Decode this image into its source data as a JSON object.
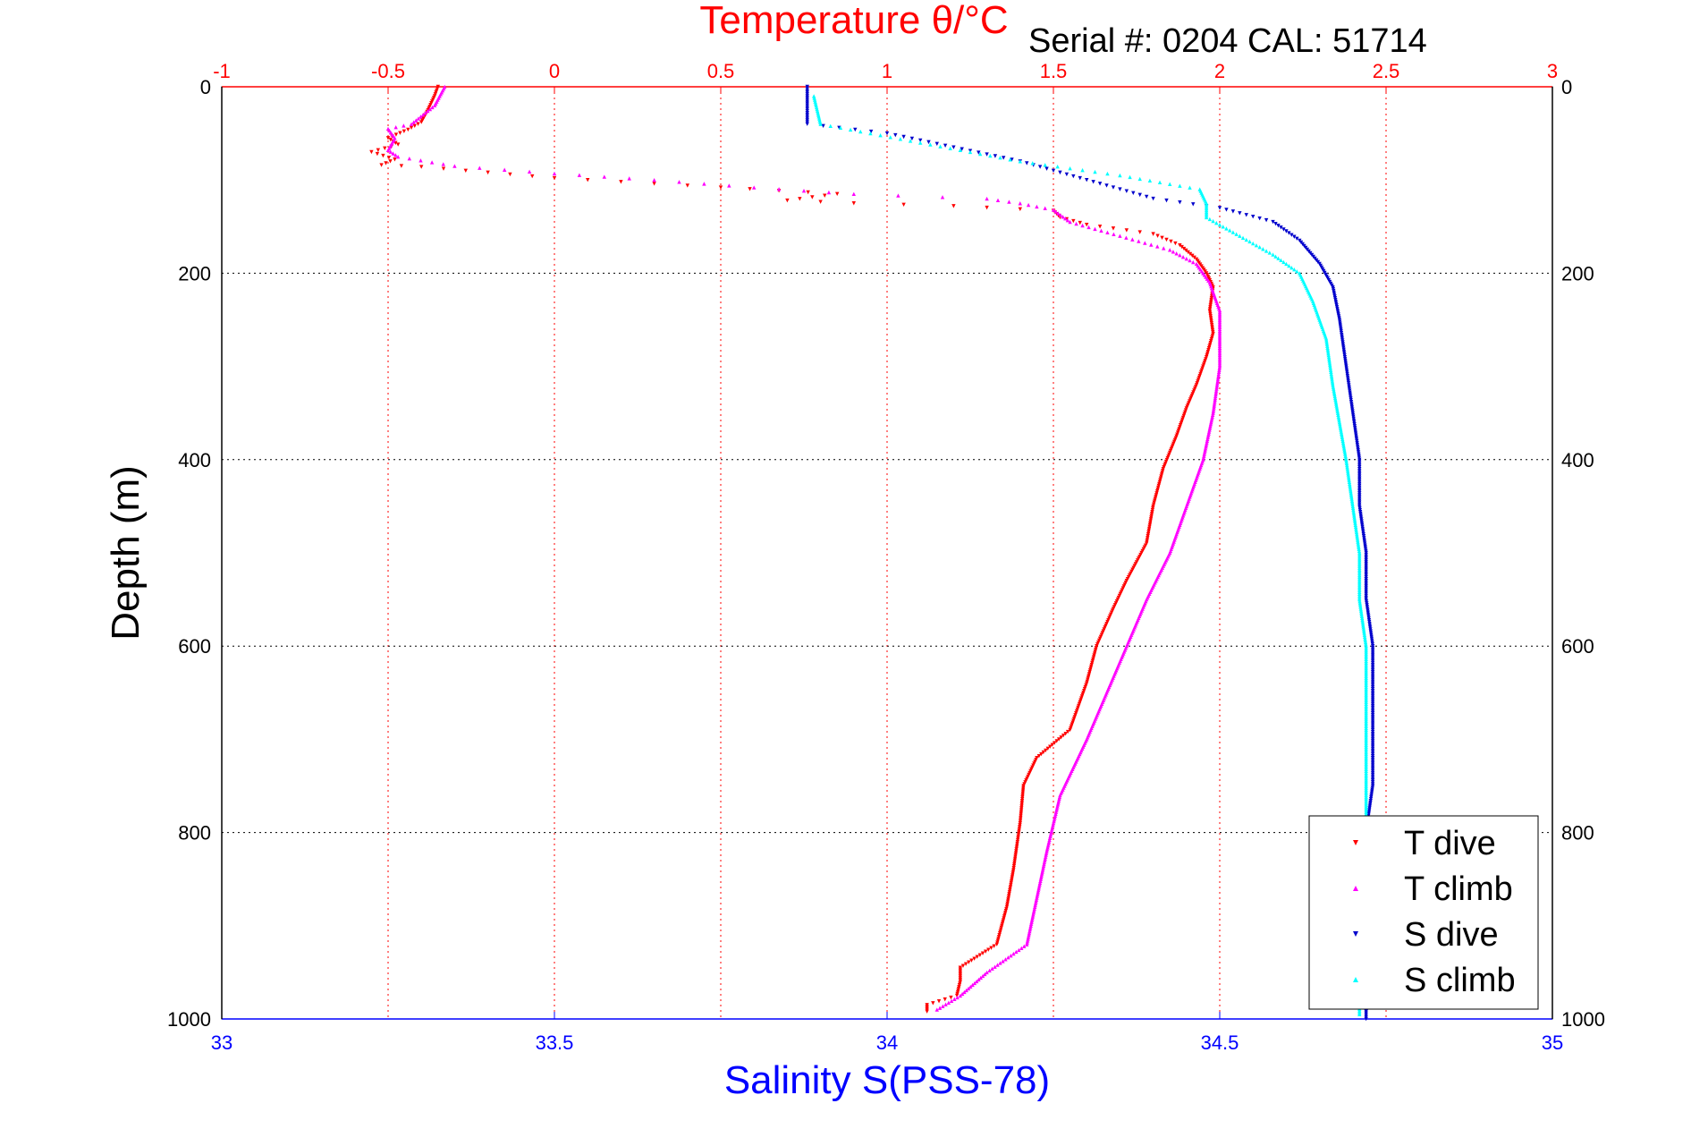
{
  "chart_data": {
    "type": "scatter",
    "title": "Temperature θ/°C",
    "annotation": "Serial #: 0204  CAL: 51714",
    "xlabel_bottom": "Salinity S(PSS-78)",
    "xlabel_top": "Temperature θ/°C",
    "ylabel": "Depth (m)",
    "ylim": [
      0,
      1000
    ],
    "y_reversed": true,
    "xlim_bottom": [
      33,
      35
    ],
    "xlim_top": [
      -1,
      3
    ],
    "bottom_ticks": [
      "33",
      "33.5",
      "34",
      "34.5",
      "35"
    ],
    "top_ticks": [
      "-1",
      "-0.5",
      "0",
      "0.5",
      "1",
      "1.5",
      "2",
      "2.5",
      "3"
    ],
    "y_ticks": [
      "0",
      "200",
      "400",
      "600",
      "800",
      "1000"
    ],
    "grid": true,
    "legend_position": "bottom-right",
    "colors": {
      "temperature_axis": "#ff0000",
      "salinity_axis": "#0000ff"
    },
    "series": [
      {
        "name": "T dive",
        "axis": "top",
        "marker": "triangle-down",
        "color": "#ff0000",
        "points": [
          [
            -0.35,
            0
          ],
          [
            -0.36,
            10
          ],
          [
            -0.38,
            25
          ],
          [
            -0.4,
            38
          ],
          [
            -0.44,
            46
          ],
          [
            -0.5,
            55
          ],
          [
            -0.47,
            62
          ],
          [
            -0.55,
            70
          ],
          [
            -0.48,
            78
          ],
          [
            -0.52,
            84
          ],
          [
            -0.4,
            86
          ],
          [
            0,
            98
          ],
          [
            0.5,
            108
          ],
          [
            0.85,
            115
          ],
          [
            0.7,
            122
          ],
          [
            0.9,
            125
          ],
          [
            1.2,
            128
          ],
          [
            1.5,
            133
          ],
          [
            1.52,
            140
          ],
          [
            1.6,
            148
          ],
          [
            1.8,
            158
          ],
          [
            1.88,
            170
          ],
          [
            1.93,
            185
          ],
          [
            1.96,
            200
          ],
          [
            1.98,
            215
          ],
          [
            1.97,
            240
          ],
          [
            1.98,
            265
          ],
          [
            1.96,
            290
          ],
          [
            1.93,
            320
          ],
          [
            1.9,
            345
          ],
          [
            1.87,
            375
          ],
          [
            1.83,
            410
          ],
          [
            1.8,
            450
          ],
          [
            1.78,
            490
          ],
          [
            1.72,
            530
          ],
          [
            1.68,
            560
          ],
          [
            1.63,
            600
          ],
          [
            1.6,
            640
          ],
          [
            1.55,
            690
          ],
          [
            1.45,
            720
          ],
          [
            1.41,
            750
          ],
          [
            1.4,
            790
          ],
          [
            1.38,
            840
          ],
          [
            1.36,
            880
          ],
          [
            1.33,
            920
          ],
          [
            1.22,
            945
          ],
          [
            1.22,
            960
          ],
          [
            1.21,
            975
          ],
          [
            1.12,
            985
          ],
          [
            1.12,
            992
          ]
        ]
      },
      {
        "name": "T climb",
        "axis": "top",
        "marker": "triangle-up",
        "color": "#ff00ff",
        "points": [
          [
            -0.33,
            0
          ],
          [
            -0.36,
            20
          ],
          [
            -0.43,
            40
          ],
          [
            -0.5,
            45
          ],
          [
            -0.48,
            55
          ],
          [
            -0.5,
            68
          ],
          [
            -0.47,
            75
          ],
          [
            -0.3,
            85
          ],
          [
            0,
            93
          ],
          [
            0.3,
            100
          ],
          [
            0.6,
            108
          ],
          [
            0.9,
            115
          ],
          [
            1.3,
            120
          ],
          [
            1.4,
            125
          ],
          [
            1.5,
            132
          ],
          [
            1.55,
            145
          ],
          [
            1.7,
            160
          ],
          [
            1.85,
            175
          ],
          [
            1.93,
            190
          ],
          [
            1.97,
            210
          ],
          [
            2.0,
            240
          ],
          [
            2.0,
            270
          ],
          [
            2.0,
            300
          ],
          [
            1.98,
            350
          ],
          [
            1.95,
            400
          ],
          [
            1.9,
            450
          ],
          [
            1.85,
            500
          ],
          [
            1.78,
            550
          ],
          [
            1.72,
            600
          ],
          [
            1.66,
            650
          ],
          [
            1.6,
            700
          ],
          [
            1.52,
            760
          ],
          [
            1.48,
            820
          ],
          [
            1.45,
            870
          ],
          [
            1.42,
            920
          ],
          [
            1.3,
            950
          ],
          [
            1.22,
            975
          ],
          [
            1.15,
            990
          ]
        ]
      },
      {
        "name": "S dive",
        "axis": "bottom",
        "marker": "triangle-down",
        "color": "#0000cc",
        "points": [
          [
            33.88,
            0
          ],
          [
            33.88,
            20
          ],
          [
            33.88,
            40
          ],
          [
            34.0,
            50
          ],
          [
            34.1,
            65
          ],
          [
            34.2,
            80
          ],
          [
            34.3,
            100
          ],
          [
            34.4,
            120
          ],
          [
            34.5,
            130
          ],
          [
            34.58,
            145
          ],
          [
            34.62,
            165
          ],
          [
            34.65,
            190
          ],
          [
            34.67,
            215
          ],
          [
            34.68,
            250
          ],
          [
            34.69,
            300
          ],
          [
            34.7,
            350
          ],
          [
            34.71,
            400
          ],
          [
            34.71,
            450
          ],
          [
            34.72,
            500
          ],
          [
            34.72,
            550
          ],
          [
            34.73,
            600
          ],
          [
            34.73,
            650
          ],
          [
            34.73,
            700
          ],
          [
            34.73,
            750
          ],
          [
            34.72,
            800
          ],
          [
            34.72,
            850
          ],
          [
            34.73,
            900
          ],
          [
            34.72,
            950
          ],
          [
            34.72,
            1000
          ]
        ]
      },
      {
        "name": "S climb",
        "axis": "bottom",
        "marker": "triangle-up",
        "color": "#00ffff",
        "points": [
          [
            33.89,
            10
          ],
          [
            33.9,
            40
          ],
          [
            34.05,
            60
          ],
          [
            34.2,
            80
          ],
          [
            34.35,
            95
          ],
          [
            34.47,
            110
          ],
          [
            34.48,
            125
          ],
          [
            34.48,
            140
          ],
          [
            34.53,
            160
          ],
          [
            34.58,
            180
          ],
          [
            34.62,
            200
          ],
          [
            34.64,
            230
          ],
          [
            34.66,
            270
          ],
          [
            34.67,
            320
          ],
          [
            34.68,
            360
          ],
          [
            34.69,
            400
          ],
          [
            34.7,
            450
          ],
          [
            34.71,
            500
          ],
          [
            34.71,
            550
          ],
          [
            34.72,
            600
          ],
          [
            34.72,
            650
          ],
          [
            34.72,
            700
          ],
          [
            34.72,
            750
          ],
          [
            34.72,
            800
          ],
          [
            34.72,
            850
          ],
          [
            34.72,
            900
          ],
          [
            34.71,
            950
          ],
          [
            34.71,
            995
          ]
        ]
      }
    ]
  }
}
